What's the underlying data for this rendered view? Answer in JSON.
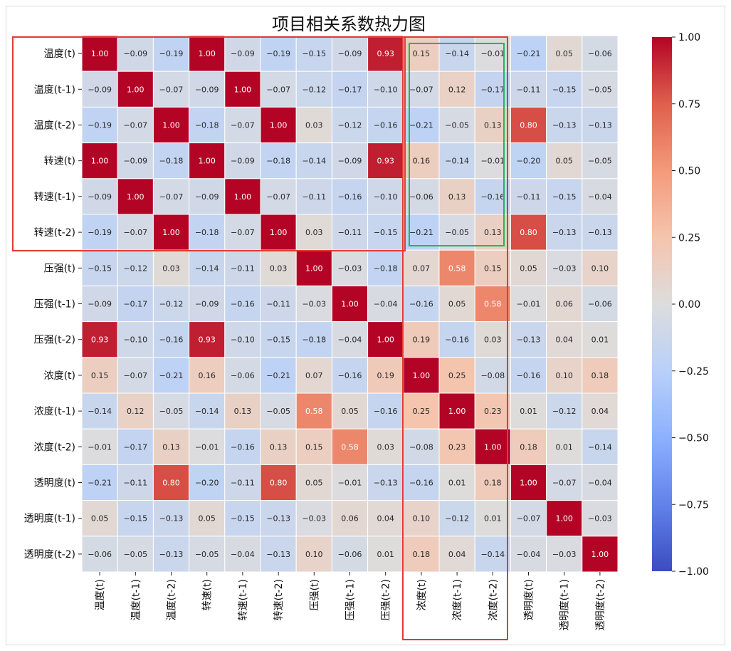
{
  "chart_data": {
    "type": "heatmap",
    "title": "项目相关系数热力图",
    "labels": [
      "温度(t)",
      "温度(t-1)",
      "温度(t-2)",
      "转速(t)",
      "转速(t-1)",
      "转速(t-2)",
      "压强(t)",
      "压强(t-1)",
      "压强(t-2)",
      "浓度(t)",
      "浓度(t-1)",
      "浓度(t-2)",
      "透明度(t)",
      "透明度(t-1)",
      "透明度(t-2)"
    ],
    "matrix": [
      [
        1.0,
        -0.09,
        -0.19,
        1.0,
        -0.09,
        -0.19,
        -0.15,
        -0.09,
        0.93,
        0.15,
        -0.14,
        -0.01,
        -0.21,
        0.05,
        -0.06
      ],
      [
        -0.09,
        1.0,
        -0.07,
        -0.09,
        1.0,
        -0.07,
        -0.12,
        -0.17,
        -0.1,
        -0.07,
        0.12,
        -0.17,
        -0.11,
        -0.15,
        -0.05
      ],
      [
        -0.19,
        -0.07,
        1.0,
        -0.18,
        -0.07,
        1.0,
        0.03,
        -0.12,
        -0.16,
        -0.21,
        -0.05,
        0.13,
        0.8,
        -0.13,
        -0.13
      ],
      [
        1.0,
        -0.09,
        -0.18,
        1.0,
        -0.09,
        -0.18,
        -0.14,
        -0.09,
        0.93,
        0.16,
        -0.14,
        -0.01,
        -0.2,
        0.05,
        -0.05
      ],
      [
        -0.09,
        1.0,
        -0.07,
        -0.09,
        1.0,
        -0.07,
        -0.11,
        -0.16,
        -0.1,
        -0.06,
        0.13,
        -0.16,
        -0.11,
        -0.15,
        -0.04
      ],
      [
        -0.19,
        -0.07,
        1.0,
        -0.18,
        -0.07,
        1.0,
        0.03,
        -0.11,
        -0.15,
        -0.21,
        -0.05,
        0.13,
        0.8,
        -0.13,
        -0.13
      ],
      [
        -0.15,
        -0.12,
        0.03,
        -0.14,
        -0.11,
        0.03,
        1.0,
        -0.03,
        -0.18,
        0.07,
        0.58,
        0.15,
        0.05,
        -0.03,
        0.1
      ],
      [
        -0.09,
        -0.17,
        -0.12,
        -0.09,
        -0.16,
        -0.11,
        -0.03,
        1.0,
        -0.04,
        -0.16,
        0.05,
        0.58,
        -0.01,
        0.06,
        -0.06
      ],
      [
        0.93,
        -0.1,
        -0.16,
        0.93,
        -0.1,
        -0.15,
        -0.18,
        -0.04,
        1.0,
        0.19,
        -0.16,
        0.03,
        -0.13,
        0.04,
        0.01
      ],
      [
        0.15,
        -0.07,
        -0.21,
        0.16,
        -0.06,
        -0.21,
        0.07,
        -0.16,
        0.19,
        1.0,
        0.25,
        -0.08,
        -0.16,
        0.1,
        0.18
      ],
      [
        -0.14,
        0.12,
        -0.05,
        -0.14,
        0.13,
        -0.05,
        0.58,
        0.05,
        -0.16,
        0.25,
        1.0,
        0.23,
        0.01,
        -0.12,
        0.04
      ],
      [
        -0.01,
        -0.17,
        0.13,
        -0.01,
        -0.16,
        0.13,
        0.15,
        0.58,
        0.03,
        -0.08,
        0.23,
        1.0,
        0.18,
        0.01,
        -0.14
      ],
      [
        -0.21,
        -0.11,
        0.8,
        -0.2,
        -0.11,
        0.8,
        0.05,
        -0.01,
        -0.13,
        -0.16,
        0.01,
        0.18,
        1.0,
        -0.07,
        -0.04
      ],
      [
        0.05,
        -0.15,
        -0.13,
        0.05,
        -0.15,
        -0.13,
        -0.03,
        0.06,
        0.04,
        0.1,
        -0.12,
        0.01,
        -0.07,
        1.0,
        -0.03
      ],
      [
        -0.06,
        -0.05,
        -0.13,
        -0.05,
        -0.04,
        -0.13,
        0.1,
        -0.06,
        0.01,
        0.18,
        0.04,
        -0.14,
        -0.04,
        -0.03,
        1.0
      ]
    ],
    "vmin": -1.0,
    "vmax": 1.0,
    "colormap": "coolwarm",
    "annotate": true,
    "colorbar_ticks": [
      "1.00",
      "0.75",
      "0.50",
      "0.25",
      "0.00",
      "−0.25",
      "−0.50",
      "−0.75",
      "−1.00"
    ],
    "highlight_boxes": [
      {
        "color": "#e53935",
        "rows": [
          0,
          5
        ],
        "cols": [
          0,
          8
        ]
      },
      {
        "color": "#e53935",
        "rows": [
          0,
          14
        ],
        "cols": [
          9,
          11
        ]
      },
      {
        "color": "#1db954",
        "rows": [
          0,
          5
        ],
        "cols": [
          9,
          11
        ]
      }
    ]
  }
}
